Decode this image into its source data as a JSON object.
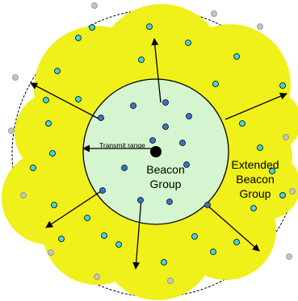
{
  "labels": {
    "transmit_range": "Transmit range",
    "beacon_line1": "Beacon",
    "beacon_line2": "Group",
    "extended_line1": "Extended",
    "extended_line2": "Beacon",
    "extended_line3": "Group"
  },
  "colors": {
    "extended_fill": "#f0f01a",
    "beacon_fill": "#d4f5cf",
    "beacon_node": "#3a73c9",
    "extended_node": "#3fd6e6",
    "outer_node": "#c4c4c4",
    "center_node": "#000000",
    "outline": "#000000"
  },
  "node_groups": {
    "beacon_group_nodes": 14,
    "extended_group_nodes": 28,
    "outside_nodes": 12
  }
}
